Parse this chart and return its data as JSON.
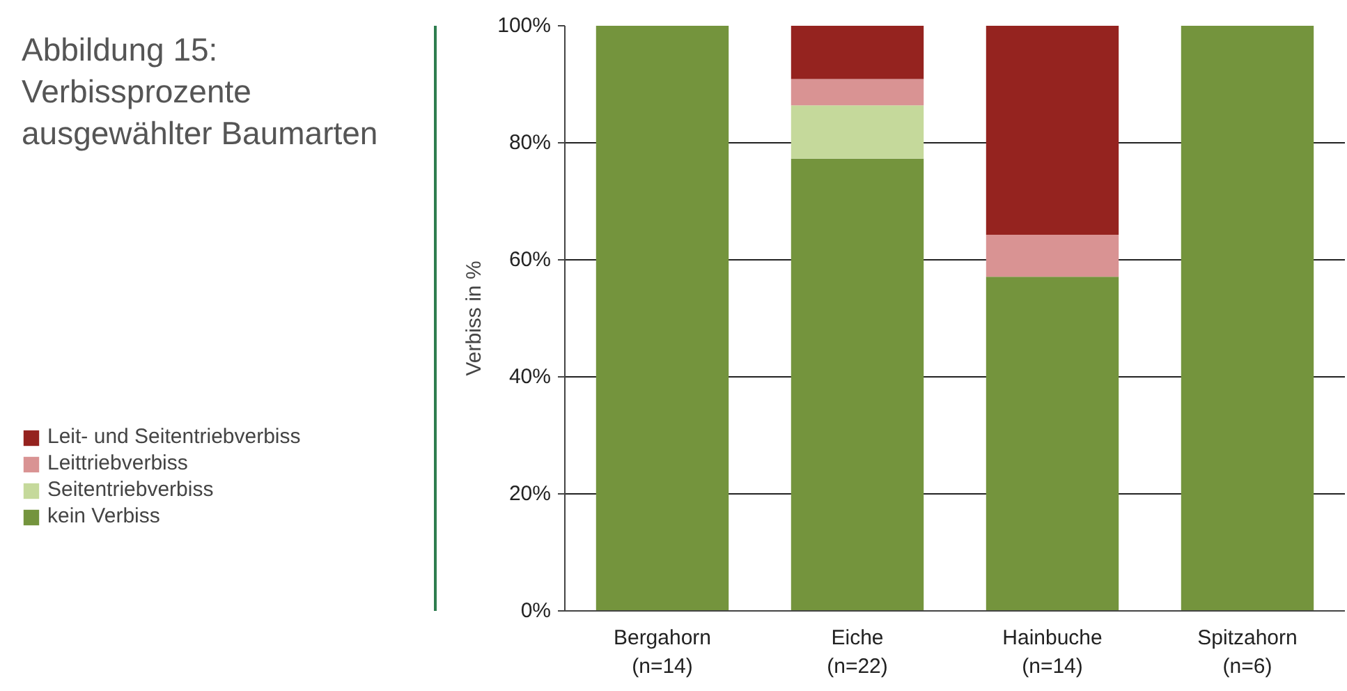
{
  "chart_data": {
    "type": "bar",
    "title": "Abbildung 15:\nVerbissprozente\nausgewählter Baumarten",
    "ylabel": "Verbiss in %",
    "categories": [
      "Bergahorn\n(n=14)",
      "Eiche\n(n=22)",
      "Hainbuche\n(n=14)",
      "Spitzahorn\n(n=6)"
    ],
    "stacked": true,
    "series": [
      {
        "name": "kein Verbiss",
        "color": "#74943d",
        "values": [
          100,
          77.3,
          57.1,
          100
        ]
      },
      {
        "name": "Seitentriebverbiss",
        "color": "#c5d99b",
        "values": [
          0,
          9.1,
          0,
          0
        ]
      },
      {
        "name": "Leittriebverbiss",
        "color": "#d99393",
        "values": [
          0,
          4.5,
          7.2,
          0
        ]
      },
      {
        "name": "Leit- und Seitentriebverbiss",
        "color": "#95231f",
        "values": [
          0,
          9.1,
          35.7,
          0
        ]
      }
    ],
    "ylim": [
      0,
      100
    ],
    "yticks": [
      {
        "value": 0,
        "label": "0%"
      },
      {
        "value": 20,
        "label": "20%"
      },
      {
        "value": 40,
        "label": "40%"
      },
      {
        "value": 60,
        "label": "60%"
      },
      {
        "value": 80,
        "label": "80%"
      },
      {
        "value": 100,
        "label": "100%"
      }
    ],
    "grid": "y",
    "legend": "left"
  }
}
